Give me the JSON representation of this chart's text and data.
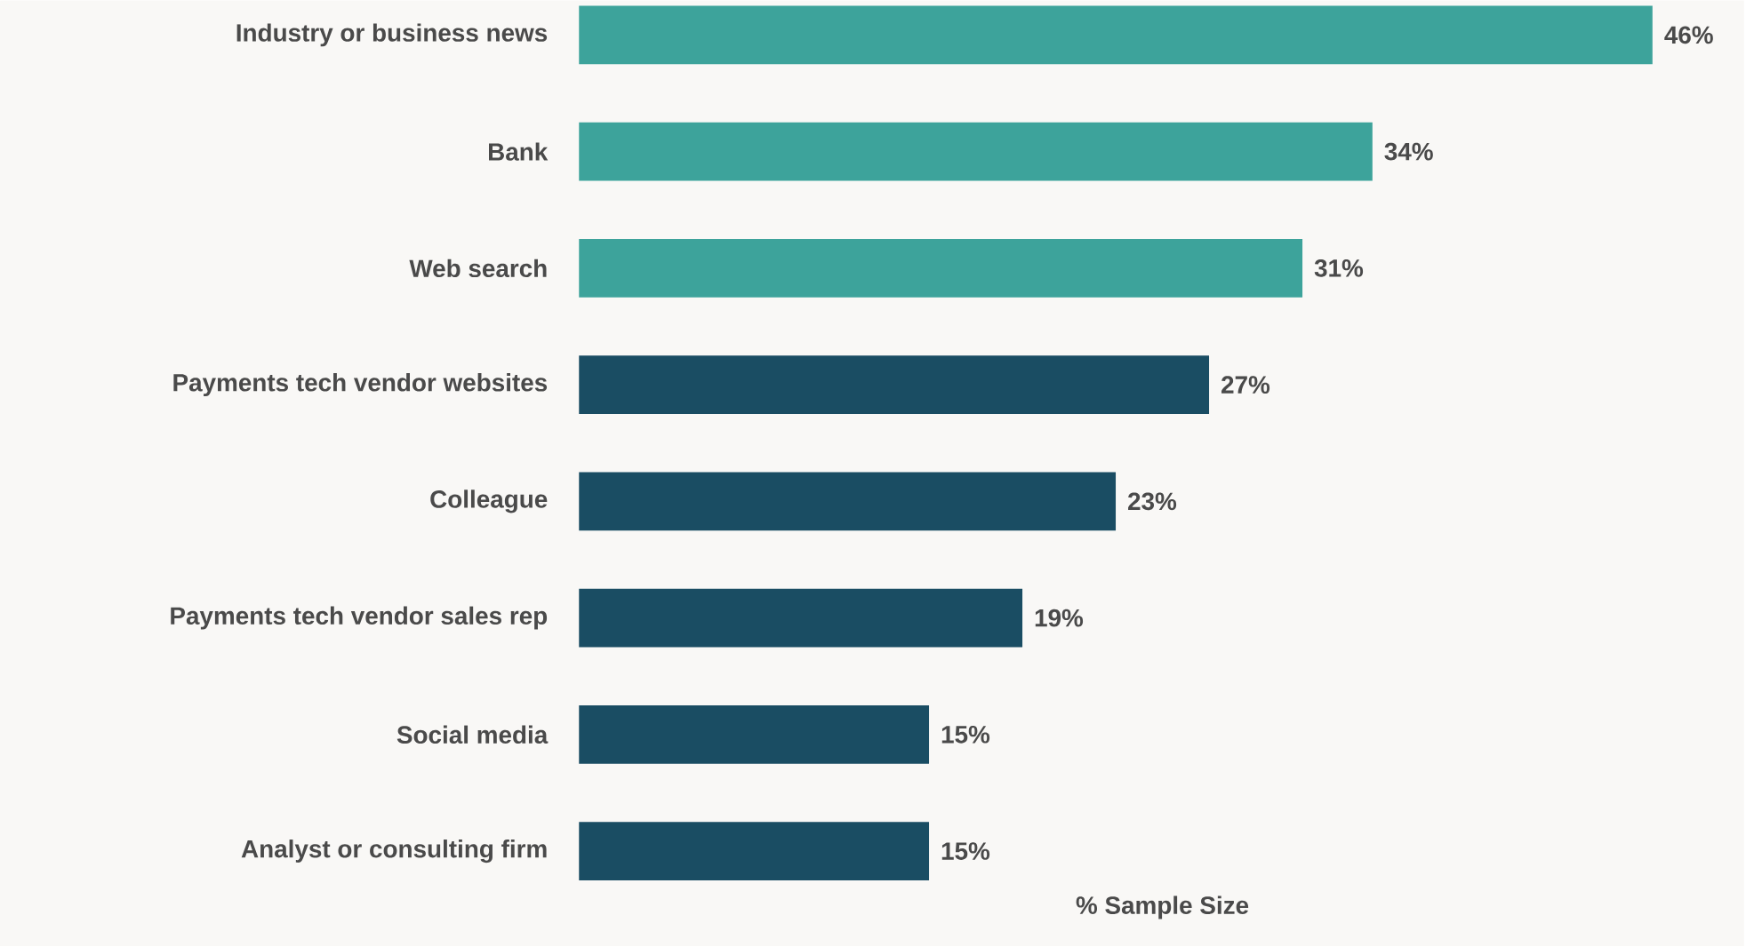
{
  "chart_data": {
    "type": "bar",
    "orientation": "horizontal",
    "xlabel": "% Sample Size",
    "categories": [
      "Industry or business news",
      "Bank",
      "Web search",
      "Payments tech vendor websites",
      "Colleague",
      "Payments tech vendor sales rep",
      "Social media",
      "Analyst or consulting firm"
    ],
    "values": [
      46,
      34,
      31,
      27,
      23,
      19,
      15,
      15
    ],
    "value_labels": [
      "46%",
      "34%",
      "31%",
      "27%",
      "23%",
      "19%",
      "15%",
      "15%"
    ],
    "colors": [
      "#3da39b",
      "#3da39b",
      "#3da39b",
      "#1a4d63",
      "#1a4d63",
      "#1a4d63",
      "#1a4d63",
      "#1a4d63"
    ]
  }
}
